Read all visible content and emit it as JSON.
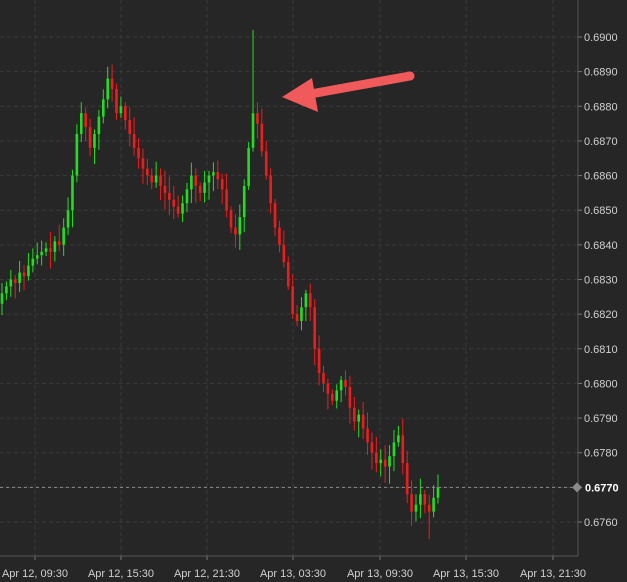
{
  "chart_data": {
    "type": "candlestick",
    "title": "",
    "xlabel": "",
    "ylabel": "",
    "ylim": [
      0.675,
      0.691
    ],
    "y_ticks": [
      "0.6760",
      "0.6770",
      "0.6780",
      "0.6790",
      "0.6800",
      "0.6810",
      "0.6820",
      "0.6830",
      "0.6840",
      "0.6850",
      "0.6860",
      "0.6870",
      "0.6880",
      "0.6890",
      "0.6900"
    ],
    "x_tick_labels": [
      "Apr 12, 09:30",
      "Apr 12, 15:30",
      "Apr 12, 21:30",
      "Apr 13, 03:30",
      "Apr 13, 09:30",
      "Apr 13, 15:30",
      "Apr 13, 21:30"
    ],
    "current_price": "0.6770",
    "colors": {
      "up": "#22dd22",
      "down": "#ee1c1c",
      "arrow": "#f05a5a",
      "background": "#262626"
    },
    "annotation": "arrow-pointing-at-spike",
    "closes": [
      0.6826,
      0.6828,
      0.683,
      0.6829,
      0.6832,
      0.6831,
      0.6834,
      0.6836,
      0.6837,
      0.6838,
      0.6839,
      0.6838,
      0.6841,
      0.684,
      0.6845,
      0.685,
      0.686,
      0.6872,
      0.6878,
      0.6874,
      0.6868,
      0.6872,
      0.6877,
      0.6882,
      0.6888,
      0.6885,
      0.6878,
      0.688,
      0.6876,
      0.6872,
      0.6868,
      0.6865,
      0.6862,
      0.686,
      0.6858,
      0.686,
      0.6857,
      0.6855,
      0.6853,
      0.6851,
      0.6849,
      0.6852,
      0.6856,
      0.686,
      0.6857,
      0.6855,
      0.6858,
      0.686,
      0.6861,
      0.6859,
      0.6856,
      0.685,
      0.6845,
      0.6843,
      0.6848,
      0.6857,
      0.6868,
      0.6878,
      0.6875,
      0.6867,
      0.686,
      0.6852,
      0.6845,
      0.684,
      0.6835,
      0.6828,
      0.682,
      0.6818,
      0.6822,
      0.6826,
      0.6822,
      0.681,
      0.6803,
      0.68,
      0.6797,
      0.6795,
      0.6798,
      0.6801,
      0.6799,
      0.6793,
      0.6789,
      0.6791,
      0.6787,
      0.6783,
      0.678,
      0.6777,
      0.6778,
      0.6776,
      0.6779,
      0.6783,
      0.6785,
      0.6777,
      0.6768,
      0.6763,
      0.6765,
      0.6768,
      0.6765,
      0.6763,
      0.6767,
      0.677
    ],
    "spike": {
      "index": 57,
      "high": 0.6902
    }
  }
}
